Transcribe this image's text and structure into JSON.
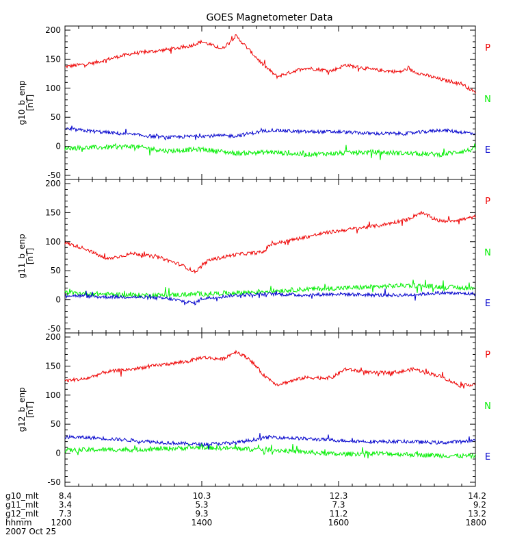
{
  "title": "GOES Magnetometer Data",
  "date_label": "2007 Oct 25",
  "colors": {
    "P": "#ee0000",
    "N": "#00ee00",
    "E": "#0000cc",
    "axis": "#000000"
  },
  "legend_labels": [
    "P",
    "N",
    "E"
  ],
  "x_tick_rows": [
    {
      "label": "g10_mlt",
      "values": [
        "8.4",
        "10.3",
        "12.3",
        "14.2"
      ]
    },
    {
      "label": "g11_mlt",
      "values": [
        "3.4",
        "5.3",
        "7.3",
        "9.2"
      ]
    },
    {
      "label": "g12_mlt",
      "values": [
        "7.3",
        "9.3",
        "11.2",
        "13.2"
      ]
    },
    {
      "label": "hhmm",
      "values": [
        "1200",
        "1400",
        "1600",
        "1800"
      ]
    }
  ],
  "chart_data": [
    {
      "type": "line",
      "ylabel": "g10_b_enp",
      "yunit": "[nT]",
      "ylim": [
        -50,
        200
      ],
      "yticks": [
        -50,
        0,
        50,
        100,
        150,
        200
      ],
      "xlim": [
        12,
        18
      ],
      "xticks": [
        12,
        14,
        16,
        18
      ],
      "series": [
        {
          "name": "P",
          "x": [
            12.0,
            12.4,
            12.8,
            13.0,
            13.4,
            13.8,
            14.0,
            14.3,
            14.5,
            14.7,
            14.9,
            15.1,
            15.5,
            15.9,
            16.1,
            16.5,
            16.9,
            17.0,
            17.2,
            17.5,
            17.8,
            18.0
          ],
          "y": [
            137,
            143,
            155,
            160,
            165,
            172,
            180,
            168,
            190,
            165,
            140,
            120,
            135,
            130,
            140,
            132,
            128,
            133,
            125,
            115,
            108,
            92
          ]
        },
        {
          "name": "N",
          "x": [
            12.0,
            12.5,
            13.0,
            13.5,
            14.0,
            14.5,
            15.0,
            15.5,
            16.0,
            16.5,
            17.0,
            17.5,
            18.0
          ],
          "y": [
            -3,
            -2,
            0,
            -8,
            -5,
            -12,
            -10,
            -14,
            -12,
            -10,
            -12,
            -14,
            -5
          ]
        },
        {
          "name": "E",
          "x": [
            12.0,
            12.5,
            13.0,
            13.5,
            14.0,
            14.5,
            15.0,
            15.5,
            16.0,
            16.5,
            17.0,
            17.5,
            18.0
          ],
          "y": [
            30,
            25,
            20,
            15,
            18,
            18,
            28,
            25,
            25,
            22,
            22,
            28,
            22
          ]
        }
      ]
    },
    {
      "type": "line",
      "ylabel": "g11_b_enp",
      "yunit": "[nT]",
      "ylim": [
        -50,
        200
      ],
      "yticks": [
        -50,
        0,
        50,
        100,
        150,
        200
      ],
      "xlim": [
        12,
        18
      ],
      "xticks": [
        12,
        14,
        16,
        18
      ],
      "series": [
        {
          "name": "P",
          "x": [
            12.0,
            12.3,
            12.6,
            13.0,
            13.4,
            13.7,
            13.9,
            14.1,
            14.5,
            14.9,
            15.0,
            15.4,
            15.8,
            16.2,
            16.6,
            17.0,
            17.2,
            17.5,
            17.8,
            18.0
          ],
          "y": [
            98,
            88,
            70,
            80,
            72,
            60,
            48,
            68,
            78,
            82,
            95,
            105,
            115,
            122,
            128,
            138,
            150,
            135,
            138,
            143
          ]
        },
        {
          "name": "N",
          "x": [
            12.0,
            12.5,
            13.0,
            13.5,
            14.0,
            14.5,
            15.0,
            15.5,
            16.0,
            16.5,
            17.0,
            17.5,
            18.0
          ],
          "y": [
            12,
            10,
            8,
            8,
            10,
            12,
            15,
            18,
            20,
            22,
            25,
            22,
            20
          ]
        },
        {
          "name": "E",
          "x": [
            12.0,
            12.5,
            13.0,
            13.5,
            13.9,
            14.0,
            14.5,
            15.0,
            15.5,
            16.0,
            16.5,
            17.0,
            17.5,
            18.0
          ],
          "y": [
            8,
            5,
            5,
            2,
            -6,
            2,
            8,
            10,
            8,
            10,
            8,
            8,
            12,
            10
          ]
        }
      ]
    },
    {
      "type": "line",
      "ylabel": "g12_b_enp",
      "yunit": "[nT]",
      "ylim": [
        -50,
        200
      ],
      "yticks": [
        -50,
        0,
        50,
        100,
        150,
        200
      ],
      "xlim": [
        12,
        18
      ],
      "xticks": [
        12,
        14,
        16,
        18
      ],
      "series": [
        {
          "name": "P",
          "x": [
            12.0,
            12.3,
            12.6,
            13.0,
            13.4,
            13.8,
            14.0,
            14.3,
            14.5,
            14.7,
            14.9,
            15.1,
            15.5,
            15.9,
            16.1,
            16.5,
            16.9,
            17.1,
            17.5,
            17.8,
            18.0
          ],
          "y": [
            125,
            128,
            140,
            145,
            152,
            158,
            165,
            162,
            175,
            162,
            135,
            118,
            130,
            130,
            145,
            138,
            140,
            145,
            132,
            115,
            120
          ]
        },
        {
          "name": "N",
          "x": [
            12.0,
            12.5,
            13.0,
            13.5,
            14.0,
            14.5,
            15.0,
            15.5,
            16.0,
            16.5,
            17.0,
            17.5,
            18.0
          ],
          "y": [
            5,
            6,
            6,
            8,
            10,
            8,
            6,
            2,
            -2,
            0,
            -2,
            -4,
            -5
          ]
        },
        {
          "name": "E",
          "x": [
            12.0,
            12.5,
            13.0,
            13.5,
            14.0,
            14.5,
            15.0,
            15.5,
            16.0,
            16.5,
            17.0,
            17.5,
            18.0
          ],
          "y": [
            28,
            26,
            22,
            18,
            15,
            18,
            28,
            25,
            22,
            20,
            20,
            18,
            22
          ]
        }
      ]
    }
  ]
}
